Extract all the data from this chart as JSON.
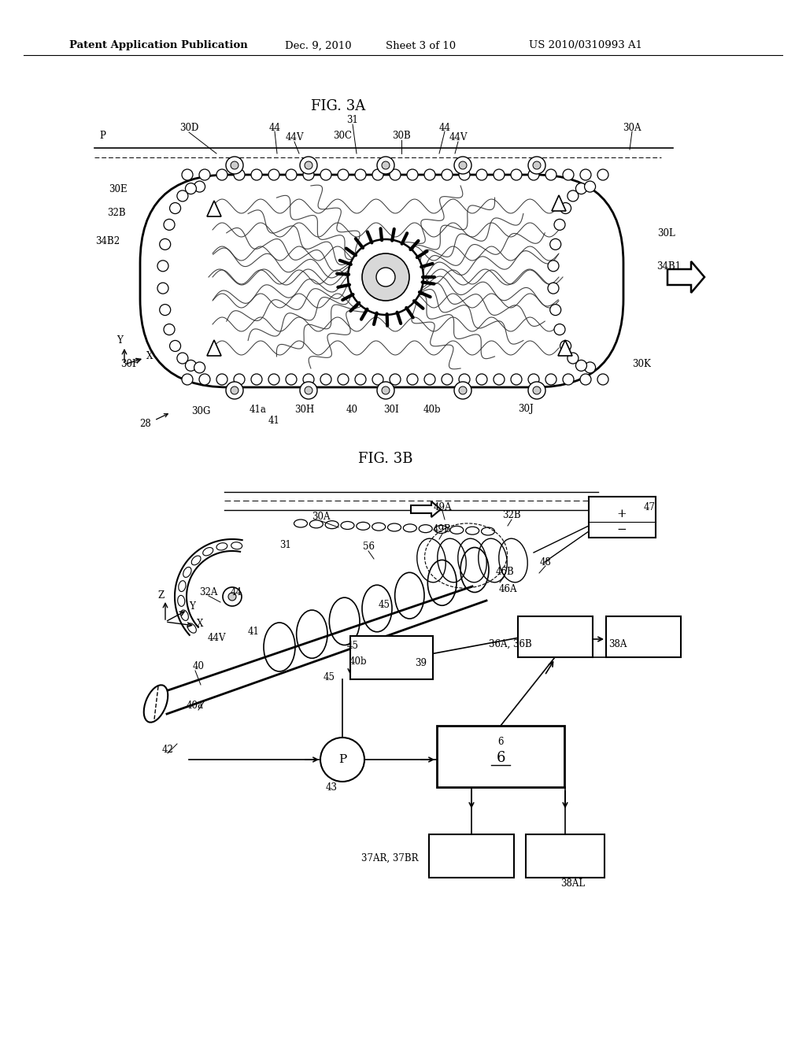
{
  "bg_color": "#ffffff",
  "header_text": "Patent Application Publication",
  "header_date": "Dec. 9, 2010",
  "header_sheet": "Sheet 3 of 10",
  "header_patent": "US 2010/0310993 A1",
  "fig3a_title": "FIG. 3A",
  "fig3b_title": "FIG. 3B",
  "lc": "#000000",
  "fig_width": 10.24,
  "fig_height": 13.2
}
